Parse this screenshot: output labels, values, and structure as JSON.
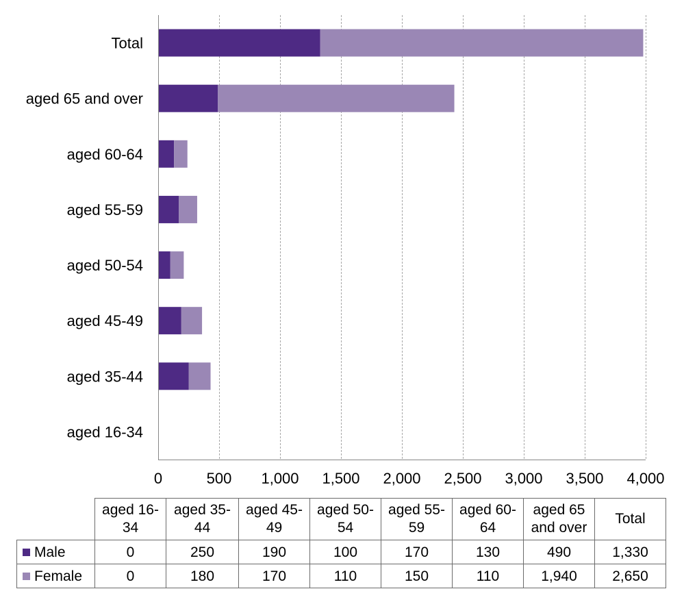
{
  "chart_data": {
    "type": "bar",
    "orientation": "horizontal",
    "stacked": true,
    "categories": [
      "aged 16-34",
      "aged 35-44",
      "aged 45-49",
      "aged 50-54",
      "aged 55-59",
      "aged 60-64",
      "aged 65 and over",
      "Total"
    ],
    "series": [
      {
        "name": "Male",
        "values": [
          0,
          250,
          190,
          100,
          170,
          130,
          490,
          1330
        ],
        "color": "#4e2a84"
      },
      {
        "name": "Female",
        "values": [
          0,
          180,
          170,
          110,
          150,
          110,
          1940,
          2650
        ],
        "color": "#9a87b5"
      }
    ],
    "xlim": [
      0,
      4000
    ],
    "x_ticks": [
      0,
      500,
      1000,
      1500,
      2000,
      2500,
      3000,
      3500,
      4000
    ],
    "x_tick_labels": [
      "0",
      "500",
      "1,000",
      "1,500",
      "2,000",
      "2,500",
      "3,000",
      "3,500",
      "4,000"
    ],
    "grid": "vertical dashed",
    "legend": "data table below chart",
    "title": "",
    "xlabel": "",
    "ylabel": ""
  },
  "data_table": {
    "headers": [
      "aged 16-34",
      "aged 35-44",
      "aged 45-49",
      "aged 50-54",
      "aged 55-59",
      "aged 60-64",
      "aged 65 and over",
      "Total"
    ],
    "rows": [
      {
        "label": "Male",
        "values": [
          "0",
          "250",
          "190",
          "100",
          "170",
          "130",
          "490",
          "1,330"
        ]
      },
      {
        "label": "Female",
        "values": [
          "0",
          "180",
          "170",
          "110",
          "150",
          "110",
          "1,940",
          "2,650"
        ]
      }
    ]
  },
  "colors": {
    "male": "#4e2a84",
    "female": "#9a87b5",
    "grid": "#a6a6a6",
    "axis": "#868686"
  }
}
